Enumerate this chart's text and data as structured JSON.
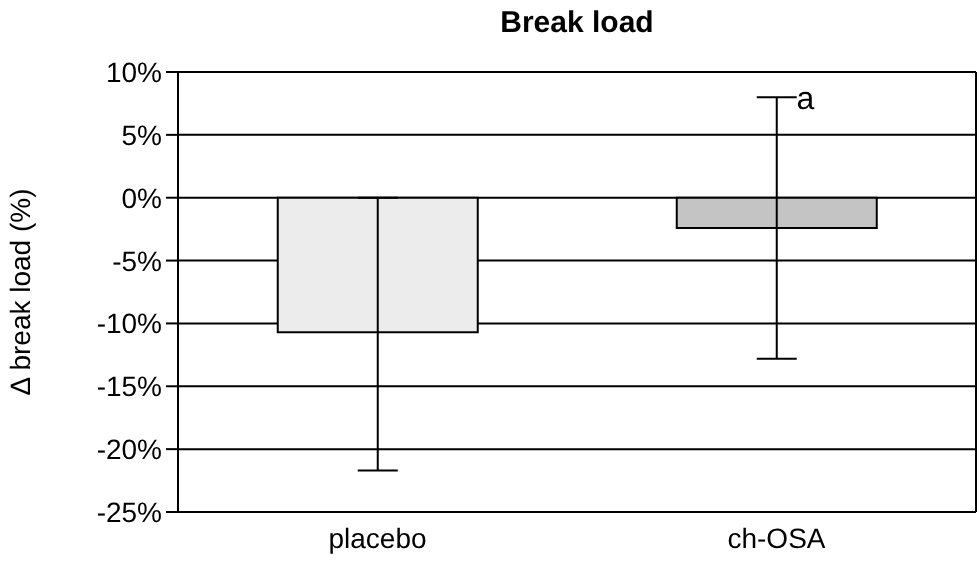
{
  "chart_data": {
    "type": "bar",
    "title": "Break load",
    "ylabel": "Δ break load (%)",
    "categories": [
      "placebo",
      "ch-OSA"
    ],
    "values": [
      -10.7,
      -2.4
    ],
    "colors": [
      "#ececec",
      "#c4c4c4"
    ],
    "errors": [
      [
        -21.7,
        0
      ],
      [
        -12.8,
        8.0
      ]
    ],
    "ylim": [
      -25,
      10
    ],
    "yticks": [
      {
        "value": -25,
        "label": "-25%"
      },
      {
        "value": -20,
        "label": "-20%"
      },
      {
        "value": -15,
        "label": "-15%"
      },
      {
        "value": -10,
        "label": "-10%"
      },
      {
        "value": -5,
        "label": "-5%"
      },
      {
        "value": 0,
        "label": "0%"
      },
      {
        "value": 5,
        "label": "5%"
      },
      {
        "value": 10,
        "label": "10%"
      }
    ],
    "grid": "y",
    "annotations": [
      {
        "text": "a",
        "x": "ch-OSA",
        "y": 8.0
      }
    ]
  }
}
